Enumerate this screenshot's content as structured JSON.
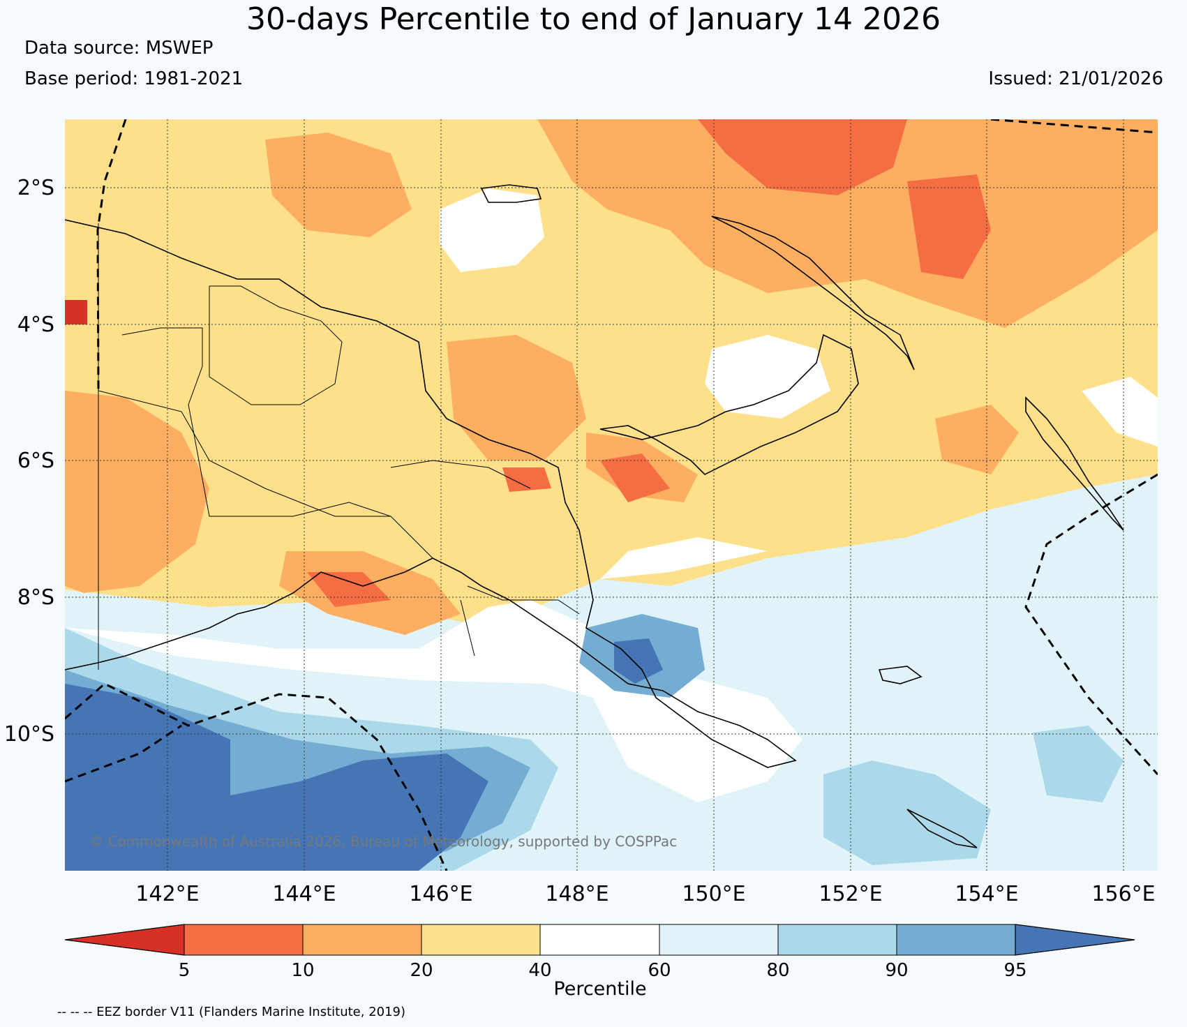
{
  "header": {
    "title": "30-days Percentile to end of January 14 2026",
    "data_source": "Data source: MSWEP",
    "base_period": "Base period: 1981-2021",
    "issued": "Issued: 21/01/2026"
  },
  "map": {
    "lat_labels": [
      "2°S",
      "4°S",
      "6°S",
      "8°S",
      "10°S"
    ],
    "lon_labels": [
      "142°E",
      "144°E",
      "146°E",
      "148°E",
      "150°E",
      "152°E",
      "154°E",
      "156°E"
    ],
    "copyright": "© Commonwealth of Australia 2026, Bureau of Meteorology, supported by COSPPac"
  },
  "colorbar": {
    "label": "Percentile",
    "ticks": [
      "5",
      "10",
      "20",
      "40",
      "60",
      "80",
      "90",
      "95"
    ],
    "colors": [
      "#d73027",
      "#f46d43",
      "#fdae61",
      "#fee08b",
      "#ffffff",
      "#e0f3f8",
      "#abd9e9",
      "#74add1",
      "#4575b4"
    ]
  },
  "footnote": "-- -- -- EEZ border V11 (Flanders Marine Institute, 2019)"
}
